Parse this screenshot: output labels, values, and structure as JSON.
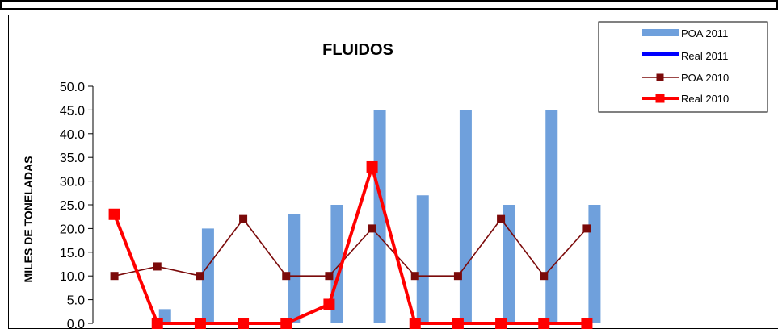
{
  "chart_data": {
    "type": "bar",
    "title": "FLUIDOS",
    "ylabel": "MILES DE TONELADAS",
    "xlabel": "",
    "ylim": [
      0,
      50
    ],
    "yticks": [
      "0.0",
      "5.0",
      "10.0",
      "15.0",
      "20.0",
      "25.0",
      "30.0",
      "35.0",
      "40.0",
      "45.0",
      "50.0"
    ],
    "categories": [
      "",
      "",
      "",
      "",
      "",
      "",
      "",
      "",
      "",
      "",
      "",
      ""
    ],
    "legend_position": "top-right",
    "series": [
      {
        "name": "POA 2011",
        "kind": "bar",
        "color": "#6fa0dc",
        "values": [
          0,
          3,
          20,
          0,
          23,
          25,
          45,
          27,
          45,
          25,
          45,
          25
        ]
      },
      {
        "name": "Real 2011",
        "kind": "bar",
        "color": "#0000ff",
        "values": [
          0,
          0,
          0,
          0,
          0,
          0,
          0,
          0,
          0,
          0,
          0,
          0
        ]
      },
      {
        "name": "POA 2010",
        "kind": "line",
        "color": "#7b0a0a",
        "values": [
          10,
          12,
          10,
          22,
          10,
          10,
          20,
          10,
          10,
          22,
          10,
          20
        ]
      },
      {
        "name": "Real 2010",
        "kind": "line",
        "color": "#ff0000",
        "values": [
          23,
          0,
          0,
          0,
          0,
          4,
          33,
          0,
          0,
          0,
          0,
          0
        ]
      }
    ]
  }
}
